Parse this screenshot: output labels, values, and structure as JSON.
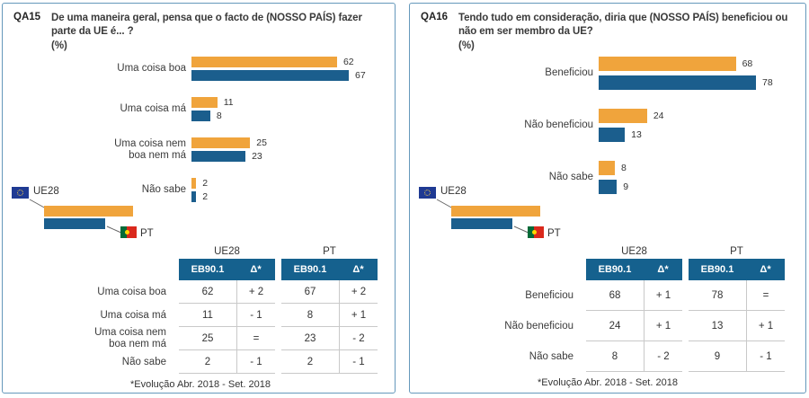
{
  "colors": {
    "ue28_bar": "#F0A43C",
    "pt_bar": "#1B5E8D",
    "table_header_bg": "#15618E",
    "panel_border": "#6598BB",
    "eu_flag_blue": "#1F3A93",
    "pt_flag_green": "#046A38",
    "pt_flag_red": "#DA291C",
    "flag_star_yellow": "#FFD700"
  },
  "chart_data": [
    {
      "type": "bar",
      "orientation": "horizontal",
      "qid": "QA15",
      "title": "De uma maneira geral, pensa que o facto de (NOSSO PAÍS) fazer parte da UE é... ?",
      "unit_label": "(%)",
      "categories": [
        "Uma coisa boa",
        "Uma coisa má",
        "Uma coisa nem\nboa nem má",
        "Não sabe"
      ],
      "series": [
        {
          "name": "UE28",
          "color": "#F0A43C",
          "values": [
            62,
            11,
            25,
            2
          ]
        },
        {
          "name": "PT",
          "color": "#1B5E8D",
          "values": [
            67,
            8,
            23,
            2
          ]
        }
      ],
      "table": {
        "group_headers": [
          "UE28",
          "PT"
        ],
        "col_headers": [
          "EB90.1",
          "Δ*"
        ],
        "rows": [
          [
            "Uma coisa boa",
            "62",
            "+ 2",
            "67",
            "+ 2"
          ],
          [
            "Uma coisa má",
            "11",
            "- 1",
            "8",
            "+ 1"
          ],
          [
            "Uma coisa nem\nboa nem má",
            "25",
            "=",
            "23",
            "- 2"
          ],
          [
            "Não sabe",
            "2",
            "- 1",
            "2",
            "- 1"
          ]
        ],
        "footnote": "*Evolução Abr. 2018 - Set. 2018"
      }
    },
    {
      "type": "bar",
      "orientation": "horizontal",
      "qid": "QA16",
      "title": "Tendo tudo em consideração, diria que (NOSSO PAÍS) beneficiou ou não em ser membro da UE?",
      "unit_label": "(%)",
      "categories": [
        "Beneficiou",
        "Não beneficiou",
        "Não sabe"
      ],
      "series": [
        {
          "name": "UE28",
          "color": "#F0A43C",
          "values": [
            68,
            24,
            8
          ]
        },
        {
          "name": "PT",
          "color": "#1B5E8D",
          "values": [
            78,
            13,
            9
          ]
        }
      ],
      "table": {
        "group_headers": [
          "UE28",
          "PT"
        ],
        "col_headers": [
          "EB90.1",
          "Δ*"
        ],
        "rows": [
          [
            "Beneficiou",
            "68",
            "+ 1",
            "78",
            "="
          ],
          [
            "Não beneficiou",
            "24",
            "+ 1",
            "13",
            "+ 1"
          ],
          [
            "Não sabe",
            "8",
            "- 2",
            "9",
            "- 1"
          ]
        ],
        "footnote": "*Evolução Abr. 2018 - Set. 2018"
      }
    }
  ]
}
